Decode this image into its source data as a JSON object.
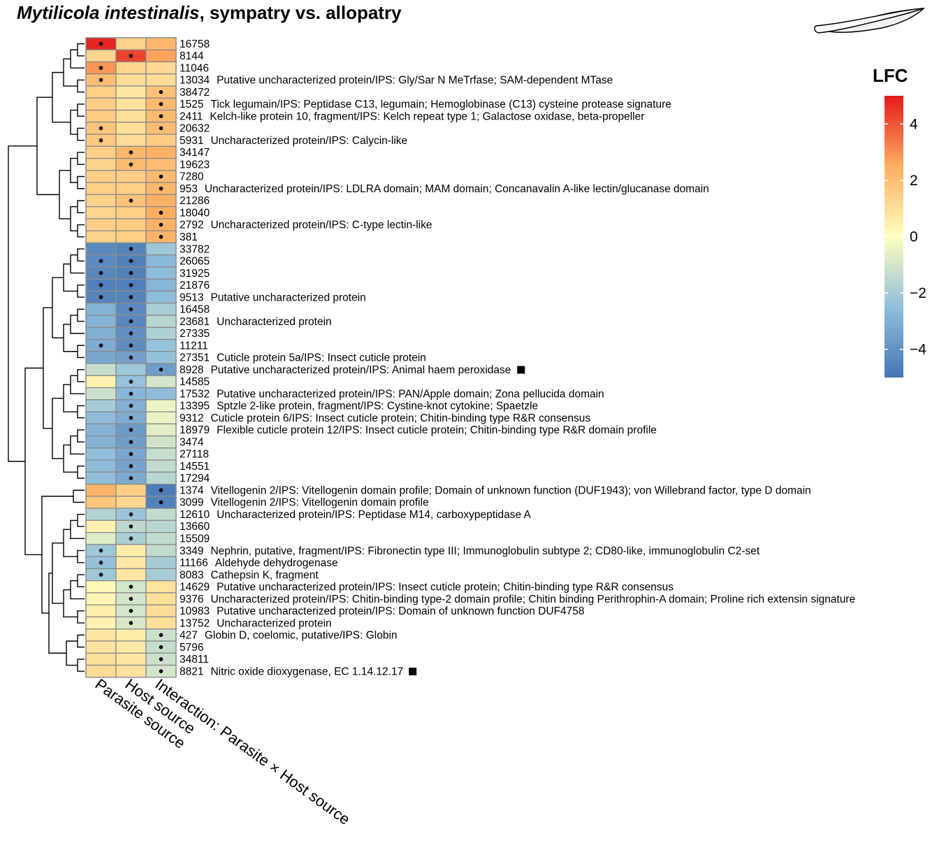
{
  "chart_data": {
    "type": "heatmap",
    "title_italic": "Mytilicola intestinalis",
    "title_rest": ", sympatry vs. allopatry",
    "columns": [
      "Parasite source",
      "Host source",
      "Interaction: Parasite × Host source"
    ],
    "legend": {
      "title": "LFC",
      "range": [
        -5,
        5
      ],
      "ticks": [
        {
          "value": 4,
          "label": "4"
        },
        {
          "value": 2,
          "label": "2"
        },
        {
          "value": 0,
          "label": "0"
        },
        {
          "value": -2,
          "label": "−2"
        },
        {
          "value": -4,
          "label": "−4"
        }
      ],
      "position": "right"
    },
    "rows": [
      {
        "id": "16758",
        "annotation": "",
        "values": [
          4.8,
          1.4,
          2.2
        ],
        "sig": [
          1,
          0,
          0
        ],
        "marker": false
      },
      {
        "id": "8144",
        "annotation": "",
        "values": [
          1.3,
          4.3,
          2.7
        ],
        "sig": [
          0,
          1,
          0
        ],
        "marker": false
      },
      {
        "id": "11046",
        "annotation": "",
        "values": [
          2.9,
          1.3,
          1.2
        ],
        "sig": [
          1,
          0,
          0
        ],
        "marker": false
      },
      {
        "id": "13034",
        "annotation": "Putative uncharacterized protein/IPS: Gly/Sar N MeTrfase; SAM-dependent MTase",
        "values": [
          2.0,
          1.1,
          1.1
        ],
        "sig": [
          1,
          0,
          0
        ],
        "marker": false
      },
      {
        "id": "38472",
        "annotation": "",
        "values": [
          1.5,
          0.8,
          1.9
        ],
        "sig": [
          0,
          0,
          1
        ],
        "marker": false
      },
      {
        "id": "1525",
        "annotation": "Tick legumain/IPS: Peptidase C13, legumain; Hemoglobinase (C13) cysteine protease signature",
        "values": [
          1.5,
          0.9,
          2.1
        ],
        "sig": [
          0,
          0,
          1
        ],
        "marker": false
      },
      {
        "id": "2411",
        "annotation": "Kelch-like protein 10, fragment/IPS: Kelch repeat type 1; Galactose oxidase, beta-propeller",
        "values": [
          1.6,
          1.0,
          2.1
        ],
        "sig": [
          0,
          0,
          1
        ],
        "marker": false
      },
      {
        "id": "20632",
        "annotation": "",
        "values": [
          1.8,
          1.0,
          2.0
        ],
        "sig": [
          1,
          0,
          1
        ],
        "marker": false
      },
      {
        "id": "5931",
        "annotation": "Uncharacterized protein/IPS: Calycin-like",
        "values": [
          1.7,
          1.1,
          1.6
        ],
        "sig": [
          1,
          0,
          0
        ],
        "marker": false
      },
      {
        "id": "34147",
        "annotation": "",
        "values": [
          1.5,
          2.2,
          2.4
        ],
        "sig": [
          0,
          1,
          0
        ],
        "marker": false
      },
      {
        "id": "19623",
        "annotation": "",
        "values": [
          1.4,
          2.1,
          2.0
        ],
        "sig": [
          0,
          1,
          0
        ],
        "marker": false
      },
      {
        "id": "7280",
        "annotation": "",
        "values": [
          1.5,
          1.5,
          2.1
        ],
        "sig": [
          0,
          0,
          1
        ],
        "marker": false
      },
      {
        "id": "953",
        "annotation": "Uncharacterized protein/IPS: LDLRA domain; MAM domain; Concanavalin A-like lectin/glucanase domain",
        "values": [
          1.5,
          1.5,
          2.2
        ],
        "sig": [
          0,
          0,
          1
        ],
        "marker": false
      },
      {
        "id": "21286",
        "annotation": "",
        "values": [
          1.4,
          1.9,
          2.4
        ],
        "sig": [
          0,
          1,
          0
        ],
        "marker": false
      },
      {
        "id": "18040",
        "annotation": "",
        "values": [
          1.3,
          1.5,
          2.5
        ],
        "sig": [
          0,
          0,
          1
        ],
        "marker": false
      },
      {
        "id": "2792",
        "annotation": "Uncharacterized protein/IPS: C-type lectin-like",
        "values": [
          1.5,
          1.6,
          2.4
        ],
        "sig": [
          0,
          0,
          1
        ],
        "marker": false
      },
      {
        "id": "381",
        "annotation": "",
        "values": [
          1.4,
          1.5,
          2.3
        ],
        "sig": [
          0,
          0,
          1
        ],
        "marker": false
      },
      {
        "id": "33782",
        "annotation": "",
        "values": [
          -4.3,
          -4.5,
          -2.2
        ],
        "sig": [
          0,
          1,
          0
        ],
        "marker": false
      },
      {
        "id": "26065",
        "annotation": "",
        "values": [
          -4.3,
          -4.6,
          -2.7
        ],
        "sig": [
          1,
          1,
          0
        ],
        "marker": false
      },
      {
        "id": "31925",
        "annotation": "",
        "values": [
          -4.4,
          -4.6,
          -2.6
        ],
        "sig": [
          1,
          1,
          0
        ],
        "marker": false
      },
      {
        "id": "21876",
        "annotation": "",
        "values": [
          -4.6,
          -4.6,
          -2.8
        ],
        "sig": [
          1,
          1,
          0
        ],
        "marker": false
      },
      {
        "id": "9513",
        "annotation": "Putative uncharacterized protein",
        "values": [
          -4.5,
          -4.5,
          -2.6
        ],
        "sig": [
          1,
          1,
          0
        ],
        "marker": false
      },
      {
        "id": "16458",
        "annotation": "",
        "values": [
          -2.9,
          -4.3,
          -1.9
        ],
        "sig": [
          0,
          1,
          0
        ],
        "marker": false
      },
      {
        "id": "23681",
        "annotation": "Uncharacterized protein",
        "values": [
          -2.9,
          -4.4,
          -1.6
        ],
        "sig": [
          0,
          1,
          0
        ],
        "marker": false
      },
      {
        "id": "27335",
        "annotation": "",
        "values": [
          -3.0,
          -4.1,
          -1.8
        ],
        "sig": [
          0,
          1,
          0
        ],
        "marker": false
      },
      {
        "id": "11211",
        "annotation": "",
        "values": [
          -3.1,
          -4.2,
          -2.4
        ],
        "sig": [
          1,
          1,
          0
        ],
        "marker": false
      },
      {
        "id": "27351",
        "annotation": "Cuticle protein 5a/IPS: Insect cuticle protein",
        "values": [
          -3.3,
          -3.5,
          -2.4
        ],
        "sig": [
          0,
          1,
          0
        ],
        "marker": false
      },
      {
        "id": "8928",
        "annotation": "Putative uncharacterized protein/IPS: Animal haem peroxidase",
        "values": [
          -1.3,
          -2.2,
          -3.6
        ],
        "sig": [
          0,
          0,
          1
        ],
        "marker": true
      },
      {
        "id": "14585",
        "annotation": "",
        "values": [
          0.4,
          -2.4,
          -1.0
        ],
        "sig": [
          0,
          1,
          0
        ],
        "marker": false
      },
      {
        "id": "17532",
        "annotation": "Putative uncharacterized protein/IPS: PAN/Apple domain; Zona pellucida domain",
        "values": [
          -1.2,
          -2.8,
          -2.6
        ],
        "sig": [
          0,
          1,
          0
        ],
        "marker": false
      },
      {
        "id": "13395",
        "annotation": "Sptzle 2-like protein, fragment/IPS: Cystine-knot cytokine; Spaetzle",
        "values": [
          -2.0,
          -3.0,
          -0.4
        ],
        "sig": [
          0,
          1,
          0
        ],
        "marker": false
      },
      {
        "id": "9312",
        "annotation": "Cuticle protein 6/IPS: Insect cuticle protein; Chitin-binding type R&R consensus",
        "values": [
          -2.6,
          -3.1,
          -0.5
        ],
        "sig": [
          0,
          1,
          0
        ],
        "marker": false
      },
      {
        "id": "18979",
        "annotation": "Flexible cuticle protein 12/IPS: Insect cuticle protein; Chitin-binding type R&R domain profile",
        "values": [
          -2.9,
          -3.7,
          -0.7
        ],
        "sig": [
          0,
          1,
          0
        ],
        "marker": false
      },
      {
        "id": "3474",
        "annotation": "",
        "values": [
          -2.9,
          -3.6,
          -1.1
        ],
        "sig": [
          0,
          1,
          0
        ],
        "marker": false
      },
      {
        "id": "27118",
        "annotation": "",
        "values": [
          -2.5,
          -3.3,
          -1.3
        ],
        "sig": [
          0,
          1,
          0
        ],
        "marker": false
      },
      {
        "id": "14551",
        "annotation": "",
        "values": [
          -2.6,
          -3.4,
          -1.4
        ],
        "sig": [
          0,
          1,
          0
        ],
        "marker": false
      },
      {
        "id": "17294",
        "annotation": "",
        "values": [
          -2.5,
          -3.2,
          -1.6
        ],
        "sig": [
          0,
          1,
          0
        ],
        "marker": false
      },
      {
        "id": "1374",
        "annotation": "Vitellogenin 2/IPS: Vitellogenin domain profile; Domain of unknown function (DUF1943); von Willebrand factor, type D domain",
        "values": [
          2.3,
          1.5,
          -4.7
        ],
        "sig": [
          0,
          0,
          1
        ],
        "marker": false
      },
      {
        "id": "3099",
        "annotation": "Vitellogenin 2/IPS: Vitellogenin domain profile",
        "values": [
          1.8,
          1.3,
          -4.6
        ],
        "sig": [
          0,
          0,
          1
        ],
        "marker": false
      },
      {
        "id": "12610",
        "annotation": "Uncharacterized protein/IPS: Peptidase M14, carboxypeptidase A",
        "values": [
          -1.7,
          -2.3,
          -1.4
        ],
        "sig": [
          0,
          1,
          0
        ],
        "marker": false
      },
      {
        "id": "13660",
        "annotation": "",
        "values": [
          0.4,
          -1.5,
          -1.6
        ],
        "sig": [
          0,
          1,
          0
        ],
        "marker": false
      },
      {
        "id": "15509",
        "annotation": "",
        "values": [
          -0.8,
          -1.9,
          -1.4
        ],
        "sig": [
          0,
          1,
          0
        ],
        "marker": false
      },
      {
        "id": "3349",
        "annotation": "Nephrin, putative, fragment/IPS: Fibronectin type III; Immunoglobulin subtype 2; CD80-like, immunoglobulin C2-set",
        "values": [
          -2.2,
          0.6,
          -1.4
        ],
        "sig": [
          1,
          0,
          0
        ],
        "marker": false
      },
      {
        "id": "11166",
        "annotation": "Aldehyde dehydrogenase",
        "values": [
          -2.4,
          0.7,
          -2.0
        ],
        "sig": [
          1,
          0,
          0
        ],
        "marker": false
      },
      {
        "id": "8083",
        "annotation": "Cathepsin K, fragment",
        "values": [
          -2.2,
          0.8,
          -2.0
        ],
        "sig": [
          1,
          0,
          0
        ],
        "marker": false
      },
      {
        "id": "14629",
        "annotation": "Putative uncharacterized protein/IPS: Insect cuticle protein; Chitin-binding type R&R consensus",
        "values": [
          0.2,
          -1.0,
          0.9
        ],
        "sig": [
          0,
          1,
          0
        ],
        "marker": false
      },
      {
        "id": "9376",
        "annotation": "Uncharacterized protein/IPS: Chitin-binding type-2 domain profile; Chitin binding Perithrophin-A domain; Proline rich extensin signature",
        "values": [
          0.3,
          -1.0,
          1.0
        ],
        "sig": [
          0,
          1,
          0
        ],
        "marker": false
      },
      {
        "id": "10983",
        "annotation": "Putative uncharacterized protein/IPS: Domain of unknown function DUF4758",
        "values": [
          0.5,
          -1.0,
          1.1
        ],
        "sig": [
          0,
          1,
          0
        ],
        "marker": false
      },
      {
        "id": "13752",
        "annotation": "Uncharacterized protein",
        "values": [
          0.4,
          -0.9,
          1.0
        ],
        "sig": [
          0,
          1,
          0
        ],
        "marker": false
      },
      {
        "id": "427",
        "annotation": "Globin D, coelomic, putative/IPS: Globin",
        "values": [
          0.8,
          0.6,
          -1.2
        ],
        "sig": [
          0,
          0,
          1
        ],
        "marker": false
      },
      {
        "id": "5796",
        "annotation": "",
        "values": [
          0.9,
          0.7,
          -1.3
        ],
        "sig": [
          0,
          0,
          1
        ],
        "marker": false
      },
      {
        "id": "34811",
        "annotation": "",
        "values": [
          1.0,
          0.8,
          -1.2
        ],
        "sig": [
          0,
          0,
          1
        ],
        "marker": false
      },
      {
        "id": "8821",
        "annotation": "Nitric oxide dioxygenase, EC 1.14.12.17",
        "values": [
          1.1,
          0.9,
          -1.0
        ],
        "sig": [
          0,
          0,
          1
        ],
        "marker": true
      }
    ]
  }
}
